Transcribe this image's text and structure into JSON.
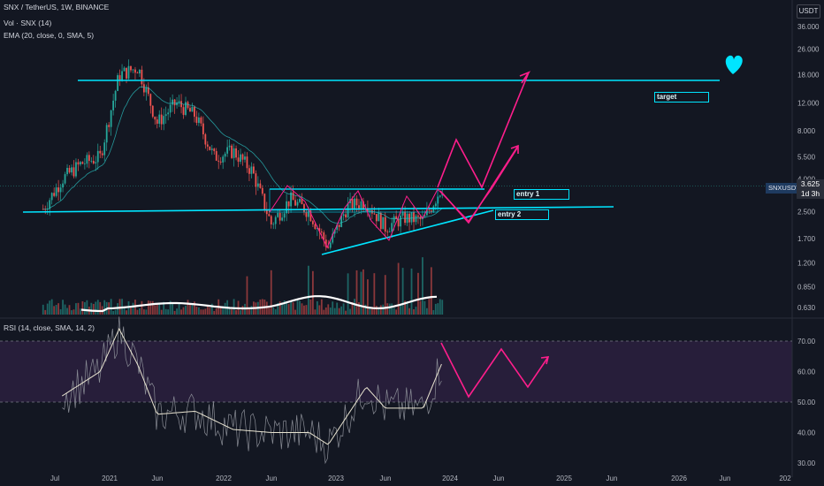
{
  "header": {
    "pair": "SNX / TetherUS, 1W, BINANCE",
    "volume_indicator": "Vol · SNX (14)",
    "ema_indicator": "EMA (20, close, 0, SMA, 5)",
    "rsi_indicator": "RSI (14, close, SMA, 14, 2)"
  },
  "price_scale": {
    "currency": "USDT",
    "ticks": [
      "36.000",
      "26.000",
      "18.000",
      "12.000",
      "8.000",
      "5.500",
      "4.000",
      "2.500",
      "1.700",
      "1.200",
      "0.850",
      "0.630"
    ]
  },
  "current_price": {
    "symbol": "SNXUSDT",
    "value": "3.625",
    "countdown": "1d 3h"
  },
  "rsi_scale": {
    "ticks": [
      "70.00",
      "60.00",
      "50.00",
      "40.00",
      "30.00"
    ]
  },
  "time_axis": {
    "labels": [
      "Jul",
      "2021",
      "Jun",
      "2022",
      "Jun",
      "2023",
      "Jun",
      "2024",
      "Jun",
      "2025",
      "Jun",
      "2026",
      "Jun",
      "202"
    ]
  },
  "annotations": {
    "target_label": "target",
    "entry1_label": "entry 1",
    "entry2_label": "entry 2",
    "heart_icon": "heart-icon"
  },
  "colors": {
    "background": "#131722",
    "up_candle": "#26a69a",
    "down_candle": "#ef5350",
    "trendline": "#00e5ff",
    "projection": "#ff1e8c",
    "ema": "#2bc4c4",
    "rsi": "#c8c8c8",
    "rsi_band": "#2a1f3d"
  },
  "chart_data": [
    {
      "type": "candlestick",
      "title": "SNX / TetherUS, 1W, BINANCE",
      "y_scale": "log",
      "ylim": [
        0.55,
        40
      ],
      "x": [
        "2020-06",
        "2020-08",
        "2020-10",
        "2020-12",
        "2021-02",
        "2021-04",
        "2021-06",
        "2021-08",
        "2021-10",
        "2021-12",
        "2022-02",
        "2022-04",
        "2022-06",
        "2022-08",
        "2022-10",
        "2022-12",
        "2023-02",
        "2023-04",
        "2023-06",
        "2023-08",
        "2023-10",
        "2023-12"
      ],
      "close": [
        2.6,
        4.0,
        5.0,
        5.5,
        18.0,
        20.0,
        9.0,
        12.0,
        10.0,
        5.5,
        6.0,
        4.5,
        2.1,
        3.0,
        2.5,
        1.5,
        2.7,
        2.9,
        2.0,
        2.3,
        2.2,
        3.6
      ],
      "ema_label": "EMA (20, close, 0, SMA, 5)"
    },
    {
      "type": "bar",
      "title": "Vol · SNX (14)"
    },
    {
      "type": "line",
      "title": "RSI (14, close, SMA, 14, 2)",
      "ylim": [
        30,
        75
      ],
      "x": [
        "2020-08",
        "2020-12",
        "2021-02",
        "2021-04",
        "2021-06",
        "2021-10",
        "2022-02",
        "2022-06",
        "2022-10",
        "2022-12",
        "2023-04",
        "2023-06",
        "2023-10",
        "2023-12"
      ],
      "values": [
        52,
        60,
        74,
        62,
        46,
        47,
        41,
        40,
        40,
        36,
        55,
        48,
        48,
        63
      ],
      "upper_band": 70,
      "lower_band": 50
    }
  ]
}
